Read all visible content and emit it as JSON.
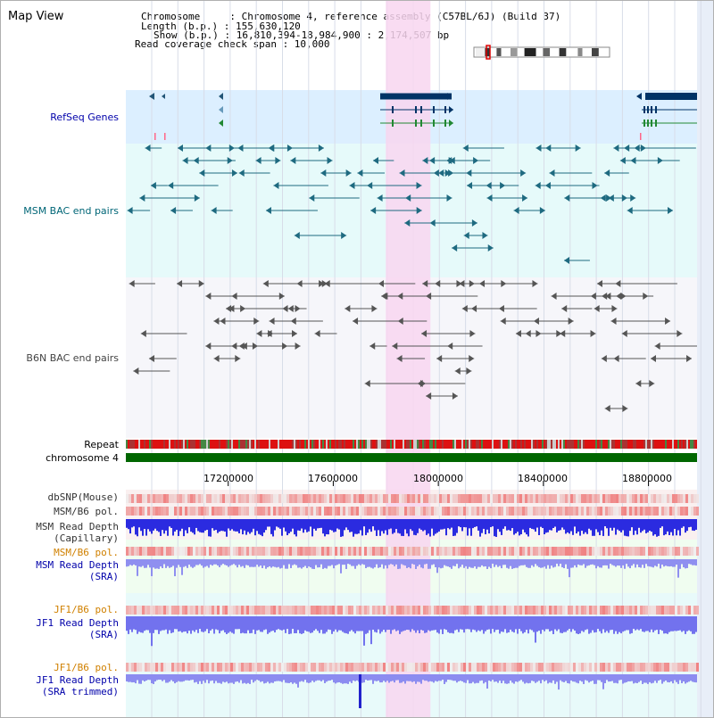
{
  "header": {
    "title": "Map View",
    "info_lines": [
      "Chromosome     : Chromosome 4, reference assembly (C57BL/6J) (Build 37)",
      "Length (b.p.) : 155,630,120",
      "Show (b.p.) : 16,810,394-18,984,900 : 2,174,507 bp",
      "Read coverage check span : 10,000"
    ]
  },
  "region": {
    "start": 16810394,
    "end": 18984900,
    "length_bp": 2174507,
    "highlight_start": 17800000,
    "highlight_end": 17970000
  },
  "tracks": {
    "refseq": {
      "label": "RefSeq Genes",
      "color": "#0000aa"
    },
    "msm_bac": {
      "label": "MSM BAC end pairs",
      "color": "#006677"
    },
    "b6n_bac": {
      "label": "B6N BAC end pairs",
      "color": "#444444"
    },
    "repeat": {
      "label": "Repeat"
    },
    "chromosome": {
      "label": "chromosome 4"
    },
    "dbsnp": {
      "label": "dbSNP(Mouse)"
    },
    "msm_b6_pol": {
      "label": "MSM/B6 pol."
    },
    "msm_depth_cap": {
      "label": "MSM Read Depth",
      "sublabel": "(Capillary)"
    },
    "msm_b6_pol2": {
      "label": "MSM/B6 pol."
    },
    "msm_depth_sra": {
      "label": "MSM Read Depth",
      "sublabel": "(SRA)"
    },
    "jf1_b6_pol": {
      "label": "JF1/B6 pol."
    },
    "jf1_depth_sra": {
      "label": "JF1 Read Depth",
      "sublabel": "(SRA)"
    },
    "jf1_b6_pol2": {
      "label": "JF1/B6 pol."
    },
    "jf1_depth_trim": {
      "label": "JF1 Read Depth",
      "sublabel": "(SRA trimmed)"
    }
  },
  "axis": {
    "ticks": [
      17200000,
      17600000,
      18000000,
      18400000,
      18800000
    ],
    "tick_labels": [
      "17200000",
      "17600000",
      "18000000",
      "18400000",
      "18800000"
    ]
  },
  "colors": {
    "refseq_bg": "#dcefff",
    "msm_bg": "#e6fafa",
    "b6n_bg": "#f6f6fa",
    "highlight": "#f8d6f0",
    "pink_bg": "#faf0f0",
    "green_bg": "#f0fdf0",
    "chrom_green": "#006600",
    "depth_blue": "#3333ee",
    "gene_navy": "#003366"
  }
}
